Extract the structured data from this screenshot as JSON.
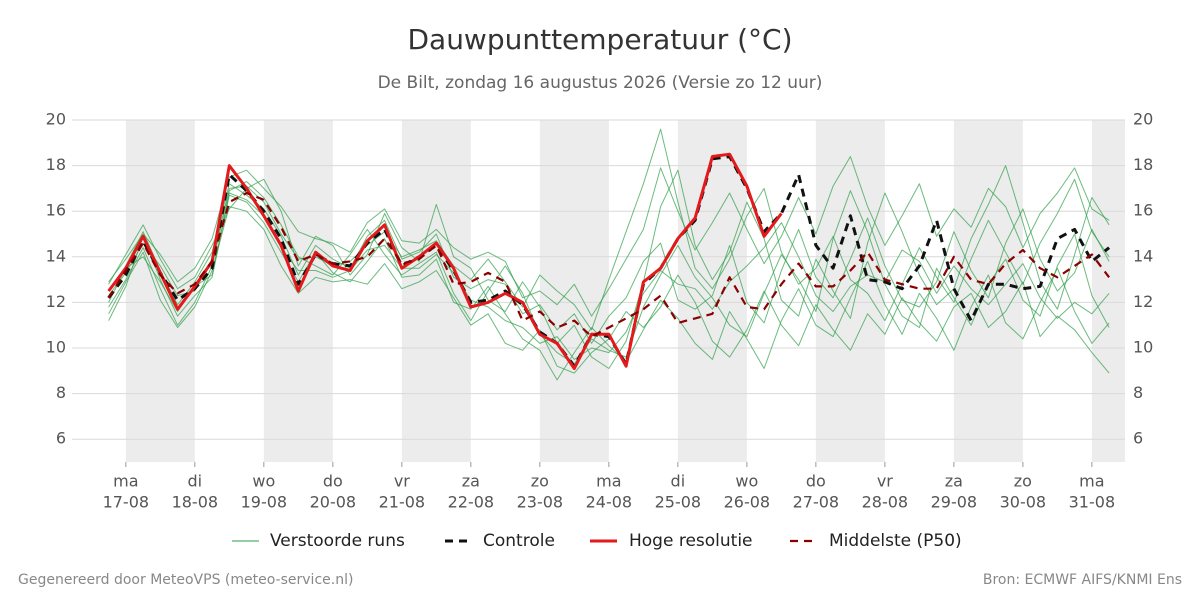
{
  "chart_data": {
    "type": "line",
    "title": "Dauwpunttemperatuur (°C)",
    "subtitle": "De Bilt, zondag 16 augustus 2026 (Versie zo 12 uur)",
    "footer_left": "Gegenereerd door MeteoVPS (meteo-service.nl)",
    "footer_right": "Bron: ECMWF AIFS/KNMI Ens",
    "grid": true,
    "xlim": [
      -0.78,
      14.48
    ],
    "ylim": [
      5,
      20
    ],
    "yticks": [
      6,
      8,
      10,
      12,
      14,
      16,
      18,
      20
    ],
    "xticks": [
      {
        "value": 0,
        "label": "17-08"
      },
      {
        "value": 1,
        "label": "18-08"
      },
      {
        "value": 2,
        "label": "19-08"
      },
      {
        "value": 3,
        "label": "20-08"
      },
      {
        "value": 4,
        "label": "21-08"
      },
      {
        "value": 5,
        "label": "22-08"
      },
      {
        "value": 6,
        "label": "23-08"
      },
      {
        "value": 7,
        "label": "24-08"
      },
      {
        "value": 8,
        "label": "25-08"
      },
      {
        "value": 9,
        "label": "26-08"
      },
      {
        "value": 10,
        "label": "27-08"
      },
      {
        "value": 11,
        "label": "28-08"
      },
      {
        "value": 12,
        "label": "29-08"
      },
      {
        "value": 13,
        "label": "30-08"
      },
      {
        "value": 14,
        "label": "31-08"
      }
    ],
    "xtick_weekdays": [
      "ma",
      "di",
      "wo",
      "do",
      "vr",
      "za",
      "zo",
      "ma",
      "di",
      "wo",
      "do",
      "vr",
      "za",
      "zo",
      "ma"
    ],
    "x": [
      -0.25,
      0,
      0.25,
      0.5,
      0.75,
      1,
      1.25,
      1.5,
      1.75,
      2,
      2.25,
      2.5,
      2.75,
      3,
      3.25,
      3.5,
      3.75,
      4,
      4.25,
      4.5,
      4.75,
      5,
      5.25,
      5.5,
      5.75,
      6,
      6.25,
      6.5,
      6.75,
      7,
      7.25,
      7.5,
      7.75,
      8,
      8.25,
      8.5,
      8.75,
      9,
      9.25,
      9.5,
      9.75,
      10,
      10.25,
      10.5,
      10.75,
      11,
      11.25,
      11.5,
      11.75,
      12,
      12.25,
      12.5,
      12.75,
      13,
      13.25,
      13.5,
      13.75,
      14,
      14.25
    ],
    "ensemble": {
      "name": "Verstoorde runs",
      "color": "#2e9e48",
      "runs": [
        [
          12.5,
          13.6,
          15.1,
          13.4,
          11.9,
          12.9,
          14.2,
          17.2,
          16.7,
          16.1,
          14.9,
          13.2,
          14.5,
          13.9,
          13.5,
          14.9,
          15.6,
          13.9,
          14.2,
          15.0,
          13.1,
          12.6,
          13.0,
          12.8,
          11.5,
          11.9,
          10.8,
          11.5,
          10.2,
          11.4,
          12.2,
          13.8,
          14.6,
          12.1,
          11.7,
          12.3,
          14.5,
          12.0,
          11.1,
          13.4,
          15.2,
          13.1,
          12.2,
          13.9,
          15.7,
          13.6,
          12.1,
          11.8,
          12.9,
          15.1,
          13.4,
          12.2,
          14.6,
          16.1,
          13.9,
          12.5,
          13.3,
          15.2,
          13.8
        ],
        [
          11.8,
          13.0,
          14.4,
          12.6,
          11.0,
          12.0,
          13.6,
          16.9,
          17.3,
          16.6,
          15.4,
          14.0,
          13.6,
          13.2,
          14.1,
          15.2,
          14.1,
          13.2,
          13.7,
          14.2,
          12.4,
          11.2,
          12.5,
          13.6,
          12.4,
          10.6,
          9.8,
          9.3,
          10.4,
          9.9,
          9.6,
          11.8,
          13.2,
          14.5,
          13.1,
          12.2,
          11.0,
          10.5,
          12.4,
          14.1,
          13.0,
          11.6,
          14.8,
          16.9,
          15.1,
          12.8,
          11.4,
          10.9,
          13.5,
          12.2,
          11.0,
          12.8,
          13.9,
          12.1,
          11.4,
          13.6,
          15.0,
          12.3,
          10.9
        ],
        [
          12.8,
          14.1,
          15.4,
          13.9,
          12.6,
          13.1,
          14.5,
          16.1,
          17.0,
          17.4,
          16.0,
          13.6,
          14.9,
          14.5,
          13.2,
          14.1,
          15.9,
          14.4,
          13.8,
          16.3,
          14.0,
          13.5,
          12.1,
          11.6,
          12.9,
          11.8,
          10.2,
          11.0,
          9.6,
          9.1,
          10.3,
          12.9,
          16.2,
          17.8,
          14.5,
          13.0,
          14.2,
          16.4,
          14.8,
          12.1,
          11.4,
          13.9,
          12.5,
          11.3,
          14.6,
          16.8,
          15.1,
          13.2,
          11.9,
          12.6,
          14.8,
          16.3,
          18.0,
          15.5,
          12.9,
          11.7,
          14.1,
          16.6,
          15.4
        ],
        [
          11.2,
          12.7,
          14.9,
          13.0,
          11.4,
          12.3,
          13.1,
          16.7,
          16.4,
          15.5,
          14.2,
          12.9,
          14.2,
          13.3,
          12.9,
          13.8,
          14.8,
          13.1,
          13.2,
          13.9,
          12.0,
          11.7,
          12.7,
          11.5,
          10.4,
          9.9,
          8.6,
          9.8,
          10.9,
          10.1,
          9.4,
          10.8,
          12.1,
          11.3,
          10.2,
          9.5,
          11.6,
          10.4,
          9.1,
          11.2,
          12.6,
          11.0,
          10.5,
          12.2,
          13.8,
          11.9,
          10.6,
          12.4,
          11.3,
          9.9,
          11.8,
          13.2,
          11.1,
          10.4,
          12.0,
          13.5,
          11.6,
          10.2,
          11.1
        ],
        [
          12.9,
          13.9,
          15.0,
          14.1,
          12.9,
          13.5,
          14.8,
          17.5,
          17.8,
          17.0,
          16.2,
          15.1,
          14.8,
          14.6,
          14.2,
          15.5,
          16.1,
          14.7,
          14.6,
          15.2,
          14.4,
          13.9,
          14.2,
          13.8,
          12.2,
          12.5,
          11.9,
          12.8,
          11.4,
          12.6,
          13.9,
          15.2,
          17.9,
          16.0,
          14.3,
          15.5,
          16.8,
          15.2,
          13.7,
          14.9,
          16.6,
          15.0,
          17.1,
          18.4,
          16.2,
          14.5,
          15.8,
          17.2,
          14.9,
          16.1,
          15.3,
          17.0,
          16.2,
          14.4,
          15.9,
          16.8,
          17.9,
          16.1,
          15.6
        ],
        [
          11.5,
          12.9,
          14.2,
          12.1,
          10.9,
          11.8,
          13.4,
          16.2,
          16.0,
          15.2,
          13.6,
          12.4,
          13.1,
          12.9,
          13.0,
          12.8,
          13.7,
          12.6,
          12.9,
          13.4,
          12.2,
          11.0,
          11.5,
          10.2,
          9.9,
          10.8,
          9.2,
          8.9,
          9.8,
          10.4,
          11.6,
          10.9,
          11.8,
          13.2,
          12.0,
          10.3,
          9.6,
          10.8,
          12.5,
          11.0,
          10.1,
          11.9,
          10.8,
          9.9,
          11.5,
          10.6,
          12.2,
          11.1,
          10.3,
          11.8,
          12.4,
          10.9,
          11.6,
          12.9,
          10.5,
          11.4,
          10.8,
          9.8,
          8.9
        ],
        [
          12.3,
          13.3,
          14.6,
          13.6,
          12.3,
          12.5,
          13.9,
          17.0,
          17.1,
          16.4,
          15.0,
          13.9,
          14.0,
          13.6,
          13.8,
          14.5,
          15.1,
          14.0,
          14.3,
          14.7,
          13.6,
          13.0,
          13.9,
          12.9,
          11.8,
          13.2,
          12.5,
          11.9,
          10.8,
          13.0,
          15.1,
          17.2,
          19.6,
          16.4,
          13.5,
          12.6,
          13.9,
          15.8,
          17.0,
          14.2,
          12.8,
          13.5,
          14.9,
          13.0,
          12.4,
          11.2,
          12.8,
          14.4,
          13.1,
          12.0,
          13.9,
          15.6,
          14.2,
          12.8,
          14.6,
          15.9,
          17.4,
          15.1,
          14.0
        ],
        [
          12.0,
          13.5,
          14.0,
          12.9,
          11.6,
          12.7,
          13.2,
          16.8,
          16.5,
          15.8,
          14.4,
          13.4,
          13.4,
          13.1,
          13.4,
          14.3,
          14.5,
          13.5,
          13.5,
          14.1,
          13.3,
          12.1,
          11.8,
          11.2,
          10.9,
          10.2,
          10.5,
          9.5,
          10.0,
          9.8,
          10.7,
          12.4,
          13.4,
          12.8,
          12.6,
          11.7,
          12.9,
          13.6,
          14.4,
          15.5,
          14.0,
          12.3,
          11.6,
          12.7,
          13.2,
          12.9,
          14.3,
          13.8,
          12.4,
          13.6,
          12.6,
          11.9,
          12.8,
          13.7,
          12.2,
          11.3,
          12.0,
          11.5,
          12.4
        ]
      ]
    },
    "series": [
      {
        "name": "Controle",
        "color": "#111111",
        "dash": "8 6",
        "width": 3,
        "values": [
          12.2,
          13.2,
          14.7,
          13.3,
          12.1,
          12.6,
          13.5,
          17.6,
          16.9,
          16.0,
          14.8,
          12.8,
          14.1,
          13.7,
          13.6,
          14.6,
          15.2,
          13.6,
          14.0,
          14.5,
          13.4,
          12.0,
          12.1,
          12.5,
          11.9,
          10.7,
          10.2,
          9.2,
          10.6,
          10.5,
          9.3,
          12.8,
          13.5,
          14.8,
          15.6,
          18.3,
          18.4,
          17.0,
          15.1,
          15.9,
          17.6,
          14.5,
          13.5,
          15.8,
          13.0,
          12.9,
          12.6,
          13.6,
          15.6,
          12.6,
          11.2,
          12.8,
          12.8,
          12.6,
          12.7,
          14.8,
          15.2,
          13.8,
          14.4
        ]
      },
      {
        "name": "Hoge resolutie",
        "color": "#e31a1c",
        "width": 3,
        "values": [
          12.5,
          13.5,
          14.9,
          13.3,
          11.7,
          12.7,
          13.8,
          18.0,
          17.0,
          15.8,
          14.5,
          12.5,
          14.2,
          13.6,
          13.4,
          14.7,
          15.4,
          13.5,
          14.0,
          14.6,
          13.5,
          11.8,
          12.0,
          12.4,
          12.0,
          10.6,
          10.2,
          9.1,
          10.6,
          10.6,
          9.2,
          12.9,
          13.5,
          14.8,
          15.7,
          18.4,
          18.5,
          17.1,
          14.9,
          15.9,
          null,
          null,
          null,
          null,
          null,
          null,
          null,
          null,
          null,
          null,
          null,
          null,
          null,
          null,
          null,
          null,
          null,
          null,
          null
        ]
      },
      {
        "name": "Middelste (P50)",
        "color": "#8b0000",
        "dash": "8 6",
        "width": 2.2,
        "values": [
          12.2,
          13.4,
          14.6,
          13.2,
          12.4,
          12.8,
          13.8,
          16.4,
          16.8,
          16.5,
          15.3,
          13.8,
          14.1,
          13.7,
          13.8,
          14.0,
          14.8,
          13.7,
          13.9,
          14.5,
          12.8,
          12.9,
          13.3,
          12.9,
          11.2,
          11.6,
          10.9,
          11.2,
          10.5,
          10.9,
          11.3,
          11.7,
          12.3,
          11.1,
          11.3,
          11.5,
          13.1,
          11.8,
          11.7,
          12.8,
          13.7,
          12.7,
          12.7,
          13.4,
          14.2,
          13.0,
          12.8,
          12.6,
          12.6,
          14.0,
          13.0,
          12.8,
          13.7,
          14.3,
          13.5,
          13.1,
          13.6,
          14.1,
          13.1
        ]
      }
    ]
  }
}
